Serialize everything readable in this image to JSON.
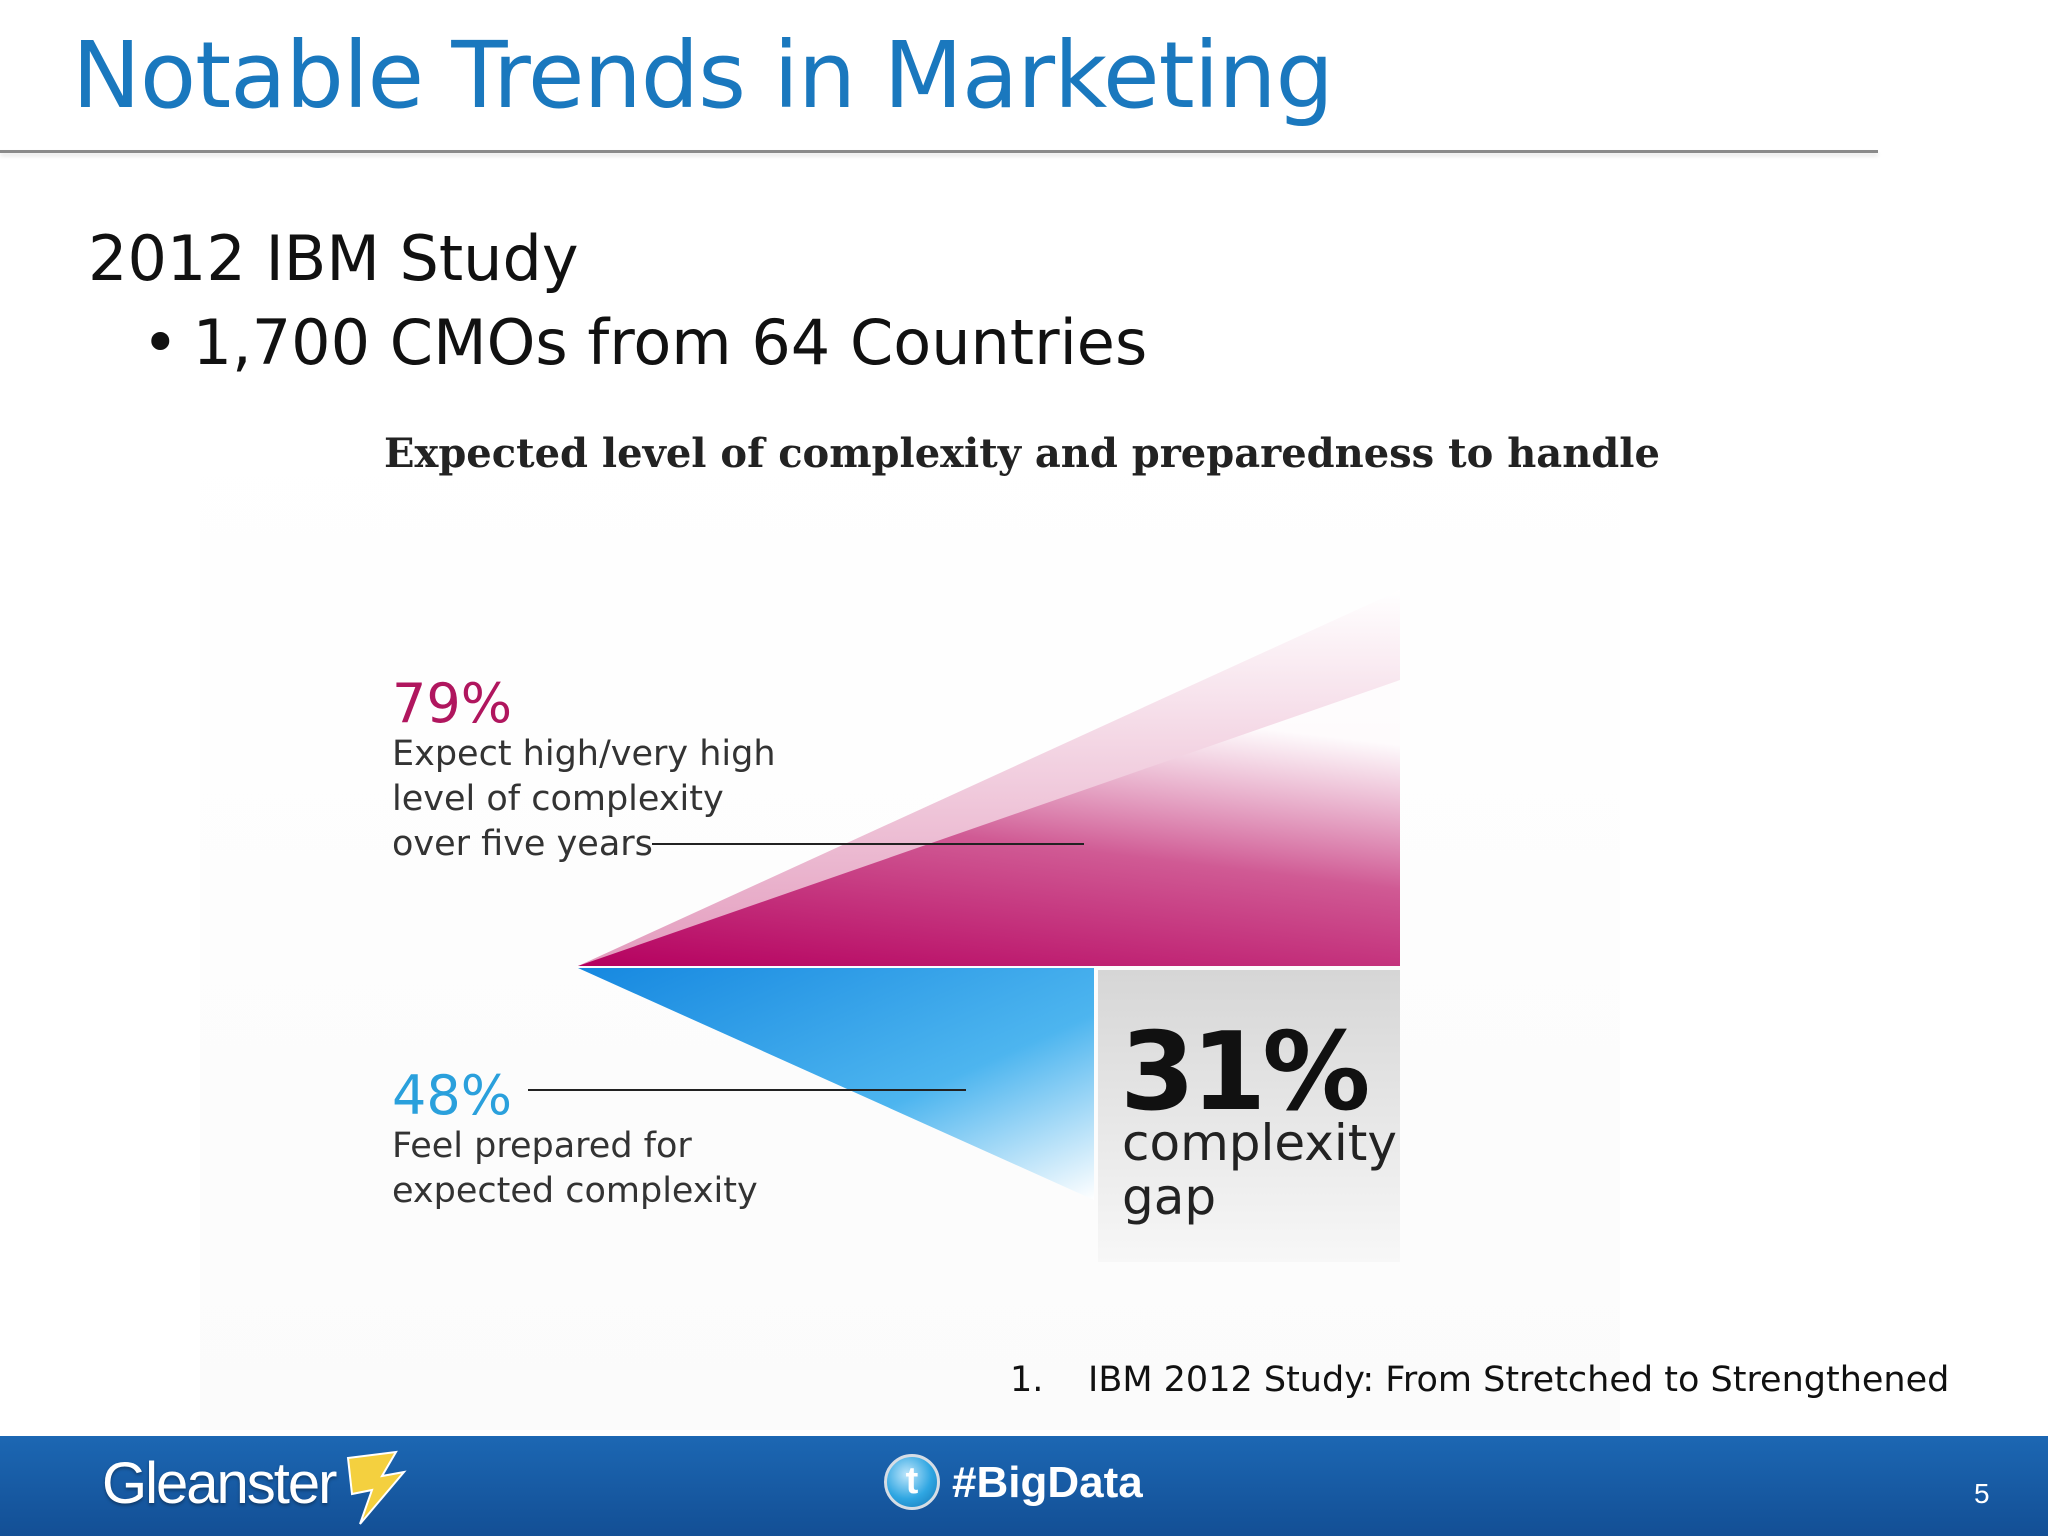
{
  "slide": {
    "title": "Notable Trends in Marketing",
    "heading": "2012 IBM Study",
    "bullet": "1,700 CMOs from 64 Countries",
    "footnote_number": "1.",
    "footnote_text": "IBM 2012 Study: From Stretched to Strengthened",
    "page_number": "5"
  },
  "infographic": {
    "title": "Expected level of complexity and preparedness to handle",
    "complexity": {
      "percent": "79%",
      "desc_lines": [
        "Expect high/very high",
        "level of complexity",
        "over five years"
      ],
      "value": 79,
      "color": "#c2185b"
    },
    "prepared": {
      "percent": "48%",
      "desc_lines": [
        "Feel prepared for",
        "expected complexity"
      ],
      "value": 48,
      "color": "#29a3e8"
    },
    "gap": {
      "percent": "31%",
      "desc_lines": [
        "complexity",
        "gap"
      ],
      "value": 31
    }
  },
  "footer": {
    "brand": "Gleanster",
    "hashtag": "#BigData",
    "twitter_icon": "twitter-icon",
    "colors": {
      "bar": "#1c67b3",
      "title": "#1a78be"
    }
  }
}
